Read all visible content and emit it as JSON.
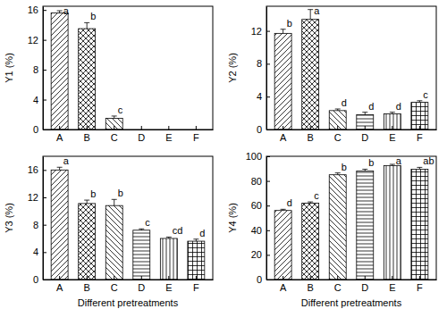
{
  "chart_data": [
    {
      "type": "bar",
      "ylabel": "Y1 (%)",
      "categories": [
        "A",
        "B",
        "C",
        "D",
        "E",
        "F"
      ],
      "values": [
        15.6,
        13.5,
        1.5,
        0,
        0,
        0
      ],
      "errors": [
        0.3,
        0.8,
        0.3,
        0,
        0,
        0
      ],
      "annotations": [
        "a",
        "b",
        "c",
        null,
        null,
        null
      ],
      "ylim": [
        0,
        16.5
      ],
      "yticks": [
        0,
        4,
        8,
        12,
        16
      ],
      "color": "#000000"
    },
    {
      "type": "bar",
      "ylabel": "Y2 (%)",
      "categories": [
        "A",
        "B",
        "C",
        "D",
        "E",
        "F"
      ],
      "values": [
        11.7,
        13.4,
        2.3,
        1.8,
        1.9,
        3.3
      ],
      "errors": [
        0.5,
        1.2,
        0.2,
        0.3,
        0.2,
        0.2
      ],
      "annotations": [
        "b",
        "a",
        "d",
        "d",
        "d",
        "c"
      ],
      "ylim": [
        0,
        15
      ],
      "yticks": [
        0,
        4,
        8,
        12
      ],
      "color": "#000000"
    },
    {
      "type": "bar",
      "ylabel": "Y3 (%)",
      "xlabel": "Different pretreatments",
      "categories": [
        "A",
        "B",
        "C",
        "D",
        "E",
        "F"
      ],
      "values": [
        16.0,
        11.1,
        10.8,
        7.2,
        6.0,
        5.6
      ],
      "errors": [
        0.4,
        0.5,
        0.9,
        0.2,
        0.2,
        0.3
      ],
      "annotations": [
        "a",
        "b",
        "b",
        "c",
        "cd",
        "d"
      ],
      "ylim": [
        0,
        18
      ],
      "yticks": [
        0,
        4,
        8,
        12,
        16
      ],
      "color": "#000000"
    },
    {
      "type": "bar",
      "ylabel": "Y4 (%)",
      "xlabel": "Different pretreatments",
      "categories": [
        "A",
        "B",
        "C",
        "D",
        "E",
        "F"
      ],
      "values": [
        56,
        62,
        85,
        88,
        92.5,
        89.5
      ],
      "errors": [
        1,
        1,
        1.5,
        1.5,
        1,
        1.5
      ],
      "annotations": [
        "d",
        "c",
        "b",
        "b",
        "a",
        "ab"
      ],
      "ylim": [
        0,
        100
      ],
      "yticks": [
        0,
        20,
        40,
        60,
        80,
        100
      ],
      "color": "#000000"
    }
  ]
}
